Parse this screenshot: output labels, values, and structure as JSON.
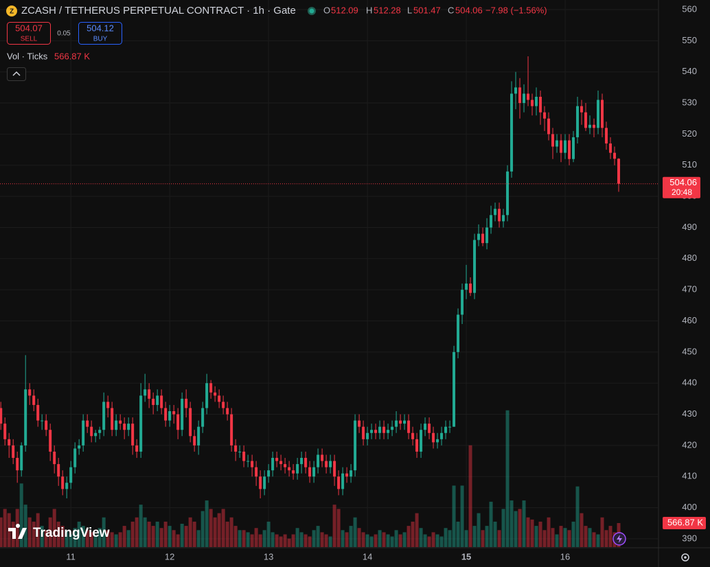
{
  "header": {
    "title": "ZCASH / TETHERUS PERPETUAL CONTRACT · 1h · Gate",
    "o_label": "O",
    "open": 512.09,
    "h_label": "H",
    "high": 512.28,
    "l_label": "L",
    "low": 501.47,
    "c_label": "C",
    "close": 504.06,
    "change": "−7.98 (−1.56%)",
    "sell_price": 504.07,
    "sell_label": "SELL",
    "spread": 0.05,
    "buy_price": 504.12,
    "buy_label": "BUY",
    "vol_title": "Vol · Ticks",
    "vol_value": "566.87 K",
    "countdown": "20:48",
    "logo": "TradingView"
  },
  "chart_data": {
    "type": "candlestick",
    "up_color": "#22ab94",
    "down_color": "#f23645",
    "xlim": [
      -0.2,
      159.5
    ],
    "xticks": [
      {
        "value": 17,
        "label": "11"
      },
      {
        "value": 41,
        "label": "12"
      },
      {
        "value": 65,
        "label": "13"
      },
      {
        "value": 89,
        "label": "14"
      },
      {
        "value": 113,
        "label": "15"
      },
      {
        "value": 137,
        "label": "16"
      }
    ],
    "ylim": [
      387.34,
      563.09
    ],
    "yticks": [
      390,
      400,
      410,
      420,
      430,
      440,
      450,
      460,
      470,
      480,
      490,
      500,
      510,
      520,
      530,
      540,
      550,
      560
    ],
    "y2lim": [
      0,
      12900
    ],
    "grid": true,
    "series": [
      {
        "open": [
          432,
          427,
          422,
          420,
          416,
          412,
          420,
          438,
          436,
          433,
          428,
          428,
          425,
          418,
          414,
          410,
          406,
          408,
          413,
          419,
          420,
          428,
          426,
          423,
          424,
          425,
          434,
          432,
          425,
          428,
          427,
          425,
          427,
          420,
          418,
          436,
          438,
          435,
          433,
          436,
          432,
          428,
          431,
          430,
          425,
          435,
          432,
          423,
          420,
          426,
          432,
          440,
          437,
          436,
          434,
          432,
          430,
          420,
          418,
          418,
          415,
          415,
          413,
          410,
          406,
          410,
          412,
          416,
          415,
          414,
          413,
          412,
          411,
          414,
          416,
          413,
          410,
          413,
          417,
          415,
          413,
          415,
          410,
          406,
          411,
          410,
          412,
          428,
          426,
          422,
          424,
          425,
          424,
          426,
          424,
          425,
          426,
          428,
          427,
          428,
          424,
          422,
          418,
          425,
          427,
          424,
          421,
          422,
          424,
          426,
          426,
          450,
          462,
          470,
          472,
          469,
          486,
          488,
          485,
          490,
          494,
          496,
          492,
          494,
          508,
          533,
          535,
          530,
          533,
          531,
          529,
          532,
          527,
          525,
          520,
          516,
          518,
          514,
          518,
          512,
          519,
          529,
          527,
          522,
          523,
          522,
          531,
          522,
          517,
          514,
          512.09
        ],
        "high": [
          434,
          429,
          424,
          422,
          418,
          421,
          449,
          440,
          438,
          435,
          430,
          430,
          427,
          420,
          416,
          412,
          410,
          415,
          421,
          422,
          430,
          430,
          428,
          425,
          426,
          437,
          436,
          434,
          430,
          430,
          429,
          429,
          429,
          422,
          440,
          443,
          440,
          437,
          438,
          438,
          434,
          433,
          433,
          432,
          437,
          438,
          434,
          425,
          428,
          434,
          443,
          441,
          439,
          438,
          436,
          434,
          432,
          422,
          420,
          420,
          417,
          417,
          415,
          412,
          412,
          414,
          418,
          418,
          417,
          416,
          415,
          414,
          416,
          418,
          418,
          415,
          415,
          419,
          419,
          417,
          417,
          417,
          412,
          413,
          413,
          414,
          430,
          430,
          428,
          426,
          427,
          427,
          428,
          428,
          427,
          428,
          431,
          430,
          430,
          430,
          426,
          424,
          427,
          429,
          429,
          426,
          424,
          426,
          428,
          428,
          452,
          464,
          472,
          478,
          474,
          488,
          491,
          490,
          493,
          497,
          498,
          498,
          496,
          510,
          537,
          540,
          538,
          536,
          545,
          533,
          535,
          534,
          529,
          527,
          522,
          520,
          520,
          520,
          520,
          521,
          532,
          531,
          530,
          526,
          525,
          534,
          533,
          524,
          519,
          516,
          512.28
        ],
        "low": [
          425,
          420,
          416,
          414,
          408,
          410,
          418,
          433,
          431,
          426,
          425,
          423,
          415,
          411,
          407,
          404,
          403,
          406,
          411,
          417,
          418,
          424,
          421,
          421,
          422,
          423,
          429,
          423,
          423,
          425,
          422,
          423,
          417,
          416,
          416,
          434,
          432,
          430,
          431,
          430,
          426,
          426,
          427,
          422,
          423,
          429,
          421,
          418,
          417,
          424,
          430,
          435,
          434,
          432,
          430,
          428,
          418,
          415,
          416,
          413,
          413,
          410,
          407,
          403,
          404,
          408,
          410,
          413,
          412,
          411,
          410,
          409,
          409,
          411,
          411,
          408,
          408,
          411,
          413,
          411,
          411,
          407,
          404,
          404,
          408,
          408,
          410,
          424,
          420,
          420,
          422,
          422,
          422,
          422,
          422,
          423,
          424,
          425,
          425,
          422,
          420,
          416,
          416,
          423,
          422,
          419,
          419,
          420,
          422,
          424,
          426,
          448,
          459,
          467,
          468,
          467,
          484,
          484,
          483,
          488,
          492,
          490,
          490,
          492,
          506,
          528,
          525,
          527,
          529,
          526,
          526,
          523,
          521,
          518,
          512,
          514,
          511,
          512,
          510,
          511,
          517,
          523,
          521,
          520,
          519,
          520,
          519,
          515,
          512,
          510,
          501.47
        ],
        "close": [
          427,
          422,
          420,
          416,
          412,
          420,
          438,
          436,
          433,
          428,
          428,
          425,
          418,
          414,
          410,
          406,
          408,
          413,
          419,
          420,
          428,
          426,
          423,
          424,
          425,
          434,
          432,
          425,
          428,
          427,
          425,
          427,
          420,
          418,
          436,
          438,
          435,
          433,
          436,
          432,
          428,
          431,
          430,
          425,
          435,
          432,
          423,
          420,
          426,
          432,
          440,
          437,
          436,
          434,
          432,
          430,
          420,
          418,
          418,
          415,
          415,
          413,
          410,
          406,
          410,
          412,
          416,
          415,
          414,
          413,
          412,
          411,
          414,
          416,
          413,
          410,
          413,
          417,
          415,
          413,
          415,
          410,
          406,
          411,
          410,
          412,
          428,
          426,
          422,
          424,
          425,
          424,
          426,
          424,
          425,
          426,
          428,
          427,
          428,
          424,
          422,
          418,
          425,
          427,
          424,
          421,
          422,
          424,
          426,
          426,
          450,
          462,
          470,
          472,
          469,
          486,
          488,
          485,
          490,
          494,
          496,
          492,
          494,
          508,
          533,
          535,
          530,
          533,
          531,
          529,
          532,
          527,
          525,
          520,
          516,
          518,
          514,
          518,
          512,
          519,
          529,
          527,
          522,
          523,
          522,
          531,
          522,
          517,
          514,
          512.09,
          504.06
        ],
        "volume": [
          700,
          900,
          800,
          600,
          900,
          1500,
          1000,
          700,
          600,
          800,
          500,
          400,
          700,
          900,
          600,
          500,
          400,
          300,
          450,
          600,
          500,
          400,
          350,
          300,
          450,
          700,
          400,
          350,
          300,
          350,
          500,
          400,
          600,
          700,
          1000,
          700,
          600,
          500,
          600,
          450,
          600,
          500,
          400,
          300,
          550,
          500,
          700,
          600,
          400,
          850,
          1100,
          900,
          700,
          800,
          900,
          600,
          700,
          500,
          400,
          400,
          350,
          300,
          450,
          300,
          400,
          600,
          350,
          300,
          250,
          300,
          200,
          300,
          450,
          350,
          300,
          250,
          400,
          500,
          350,
          300,
          250,
          1000,
          900,
          400,
          350,
          500,
          700,
          450,
          350,
          300,
          250,
          300,
          400,
          350,
          300,
          250,
          400,
          300,
          350,
          500,
          600,
          800,
          450,
          300,
          250,
          350,
          300,
          250,
          450,
          400,
          1450,
          600,
          1450,
          400,
          2400,
          500,
          800,
          400,
          500,
          1070,
          600,
          400,
          900,
          3225,
          1100,
          850,
          900,
          1100,
          700,
          650,
          500,
          600,
          400,
          700,
          450,
          300,
          500,
          450,
          400,
          600,
          1430,
          800,
          500,
          450,
          350,
          300,
          700,
          400,
          500,
          350,
          566.87
        ]
      }
    ]
  }
}
